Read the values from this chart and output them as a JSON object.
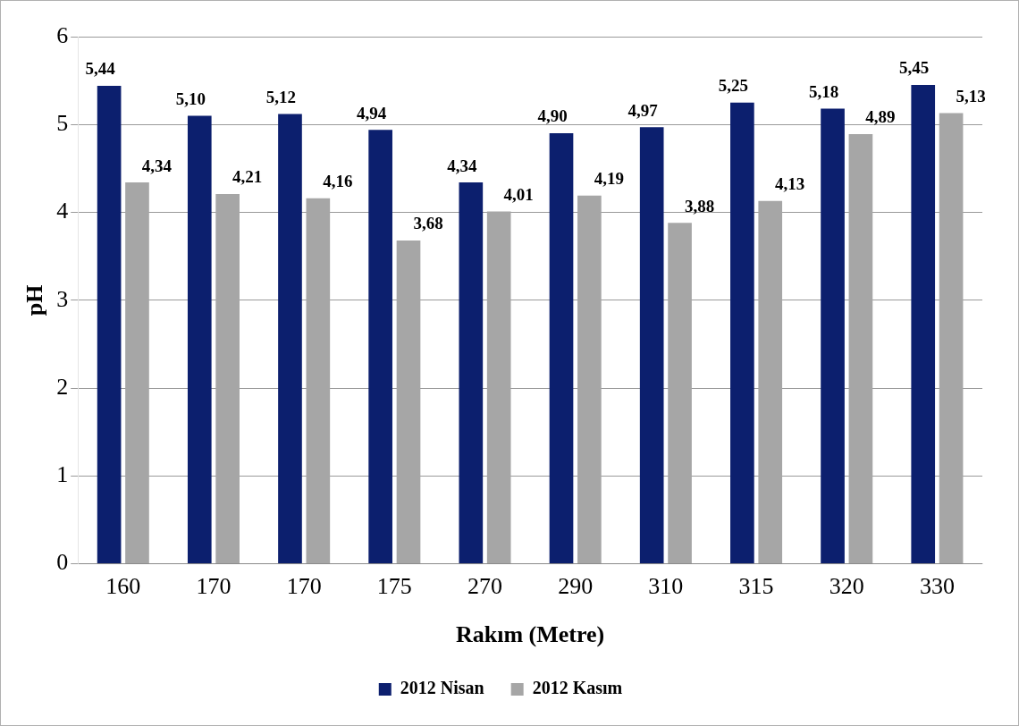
{
  "chart_data": {
    "type": "bar",
    "xlabel": "Rakım (Metre)",
    "ylabel": "pH",
    "categories": [
      "160",
      "170",
      "170",
      "175",
      "270",
      "290",
      "310",
      "315",
      "320",
      "330"
    ],
    "series": [
      {
        "name": "2012 Nisan",
        "color": "#0c1f6e",
        "values": [
          5.44,
          5.1,
          5.12,
          4.94,
          4.34,
          4.9,
          4.97,
          5.25,
          5.18,
          5.45
        ],
        "value_labels": [
          "5,44",
          "5,10",
          "5,12",
          "4,94",
          "4,34",
          "4,90",
          "4,97",
          "5,25",
          "5,18",
          "5,45"
        ]
      },
      {
        "name": "2012 Kasım",
        "color": "#a6a6a6",
        "values": [
          4.34,
          4.21,
          4.16,
          3.68,
          4.01,
          4.19,
          3.88,
          4.13,
          4.89,
          5.13
        ],
        "value_labels": [
          "4,34",
          "4,21",
          "4,16",
          "3,68",
          "4,01",
          "4,19",
          "3,88",
          "4,13",
          "4,89",
          "5,13"
        ]
      }
    ],
    "ylim": [
      0,
      6
    ],
    "yticks": [
      0,
      1,
      2,
      3,
      4,
      5,
      6
    ],
    "grid": "y",
    "legend": "bottom"
  }
}
